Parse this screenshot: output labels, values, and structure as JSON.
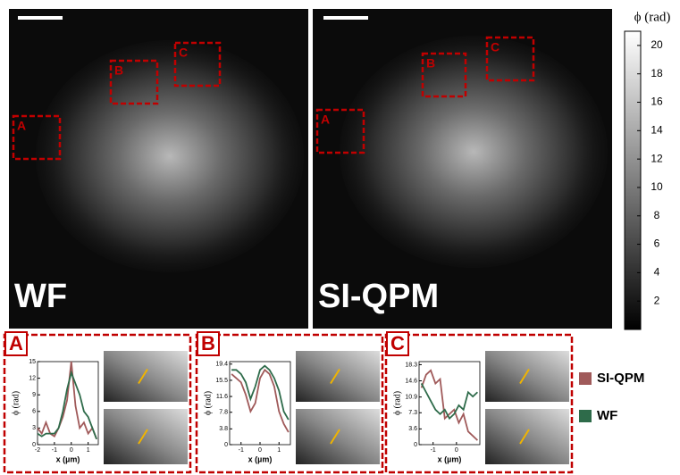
{
  "images": [
    {
      "label": "WF"
    },
    {
      "label": "SI-QPM"
    }
  ],
  "regions": [
    {
      "label": "A"
    },
    {
      "label": "B"
    },
    {
      "label": "C"
    }
  ],
  "colorbar": {
    "label": "ϕ (rad)",
    "lim": [
      0,
      21
    ],
    "ticks": [
      2,
      4,
      6,
      8,
      10,
      12,
      14,
      16,
      18,
      20
    ]
  },
  "chart_data": [
    {
      "type": "line",
      "x_label": "x (µm)",
      "y_label": "ϕ (rad)",
      "x": [
        -2,
        -1.75,
        -1.5,
        -1.25,
        -1,
        -0.75,
        -0.5,
        -0.25,
        0,
        0.25,
        0.5,
        0.75,
        1,
        1.25,
        1.5
      ],
      "series": [
        {
          "name": "SI-QPM",
          "color": "#a05a5a",
          "values": [
            3,
            2,
            4,
            2,
            1.5,
            3,
            5,
            8,
            15,
            7,
            3,
            4,
            2,
            3,
            1
          ]
        },
        {
          "name": "WF",
          "color": "#2e6b4a",
          "values": [
            2,
            1.5,
            2,
            2,
            2,
            3,
            6,
            10,
            13,
            11,
            9,
            6,
            5,
            3,
            1
          ]
        }
      ],
      "xlim": [
        -2,
        1.6
      ],
      "ylim": [
        0,
        15
      ],
      "xticks": [
        -2,
        -1,
        0,
        1
      ],
      "yticks": [
        0,
        3,
        6,
        9,
        12,
        15
      ]
    },
    {
      "type": "line",
      "x_label": "x (µm)",
      "y_label": "ϕ (rad)",
      "x": [
        -1.5,
        -1.25,
        -1,
        -0.75,
        -0.5,
        -0.25,
        0,
        0.25,
        0.5,
        0.75,
        1,
        1.25,
        1.5
      ],
      "series": [
        {
          "name": "SI-QPM",
          "color": "#a05a5a",
          "values": [
            17,
            16,
            15,
            12,
            8,
            10,
            16,
            18,
            17,
            14,
            8,
            5,
            3
          ]
        },
        {
          "name": "WF",
          "color": "#2e6b4a",
          "values": [
            18,
            18,
            17,
            15,
            11,
            14,
            18,
            19,
            18,
            16,
            13,
            8,
            6
          ]
        }
      ],
      "xlim": [
        -1.6,
        1.6
      ],
      "ylim": [
        0,
        20
      ],
      "xticks": [
        -1,
        0,
        1
      ],
      "yticks": [
        0,
        3.8,
        7.8,
        11.6,
        15.5,
        19.4
      ]
    },
    {
      "type": "line",
      "x_label": "x (µm)",
      "y_label": "ϕ (rad)",
      "x": [
        -1.5,
        -1.3,
        -1.1,
        -0.9,
        -0.7,
        -0.5,
        -0.3,
        -0.1,
        0.1,
        0.3,
        0.5,
        0.7,
        0.9
      ],
      "series": [
        {
          "name": "SI-QPM",
          "color": "#a05a5a",
          "values": [
            13,
            16,
            17,
            14,
            15,
            6,
            7,
            8,
            5,
            7,
            3,
            2,
            1
          ]
        },
        {
          "name": "WF",
          "color": "#2e6b4a",
          "values": [
            14,
            12,
            10,
            8,
            7,
            8,
            6,
            7,
            9,
            8,
            12,
            11,
            12
          ]
        }
      ],
      "xlim": [
        -1.6,
        1
      ],
      "ylim": [
        0,
        19
      ],
      "xticks": [
        -1,
        0
      ],
      "yticks": [
        0,
        3.6,
        7.3,
        10.9,
        14.6,
        18.3
      ]
    }
  ]
}
